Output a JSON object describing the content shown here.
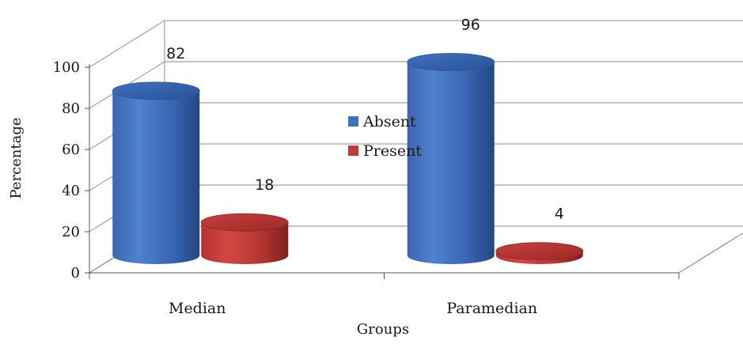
{
  "chart_data": {
    "type": "bar",
    "categories": [
      "Median",
      "Paramedian"
    ],
    "series": [
      {
        "name": "Absent",
        "values": [
          82,
          96
        ],
        "color": "#3f6fbf"
      },
      {
        "name": "Present",
        "values": [
          18,
          4
        ],
        "color": "#c0393b"
      }
    ],
    "xlabel": "Groups",
    "ylabel": "Percentage",
    "ylim": [
      0,
      100
    ],
    "yticks": [
      0,
      20,
      40,
      60,
      80,
      100
    ],
    "legend": "center",
    "grid": true,
    "style": "3d-cylinder"
  }
}
